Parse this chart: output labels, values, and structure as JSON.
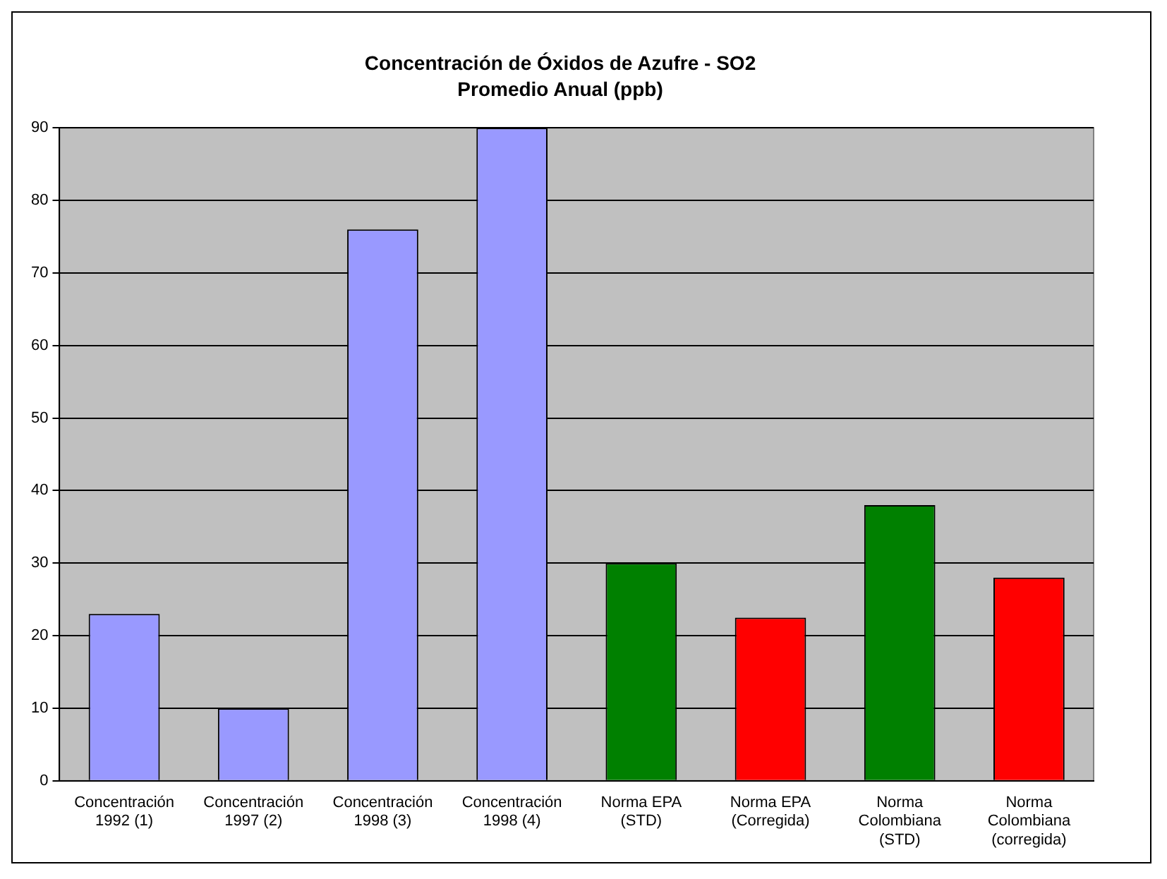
{
  "chart_data": {
    "type": "bar",
    "title": "Concentración de Óxidos de Azufre - SO2",
    "subtitle": "Promedio Anual (ppb)",
    "categories": [
      "Concentración 1992 (1)",
      "Concentración 1997 (2)",
      "Concentración 1998 (3)",
      "Concentración 1998 (4)",
      "Norma EPA (STD)",
      "Norma EPA (Corregida)",
      "Norma Colombiana (STD)",
      "Norma Colombiana (corregida)"
    ],
    "values": [
      23,
      10,
      76,
      90,
      30,
      22.5,
      38,
      28
    ],
    "colors": [
      "#9999ff",
      "#9999ff",
      "#9999ff",
      "#9999ff",
      "#008000",
      "#ff0000",
      "#008000",
      "#ff0000"
    ],
    "ylim": [
      0,
      90
    ],
    "yticks": [
      0,
      10,
      20,
      30,
      40,
      50,
      60,
      70,
      80,
      90
    ],
    "grid": "y",
    "legend": false
  }
}
